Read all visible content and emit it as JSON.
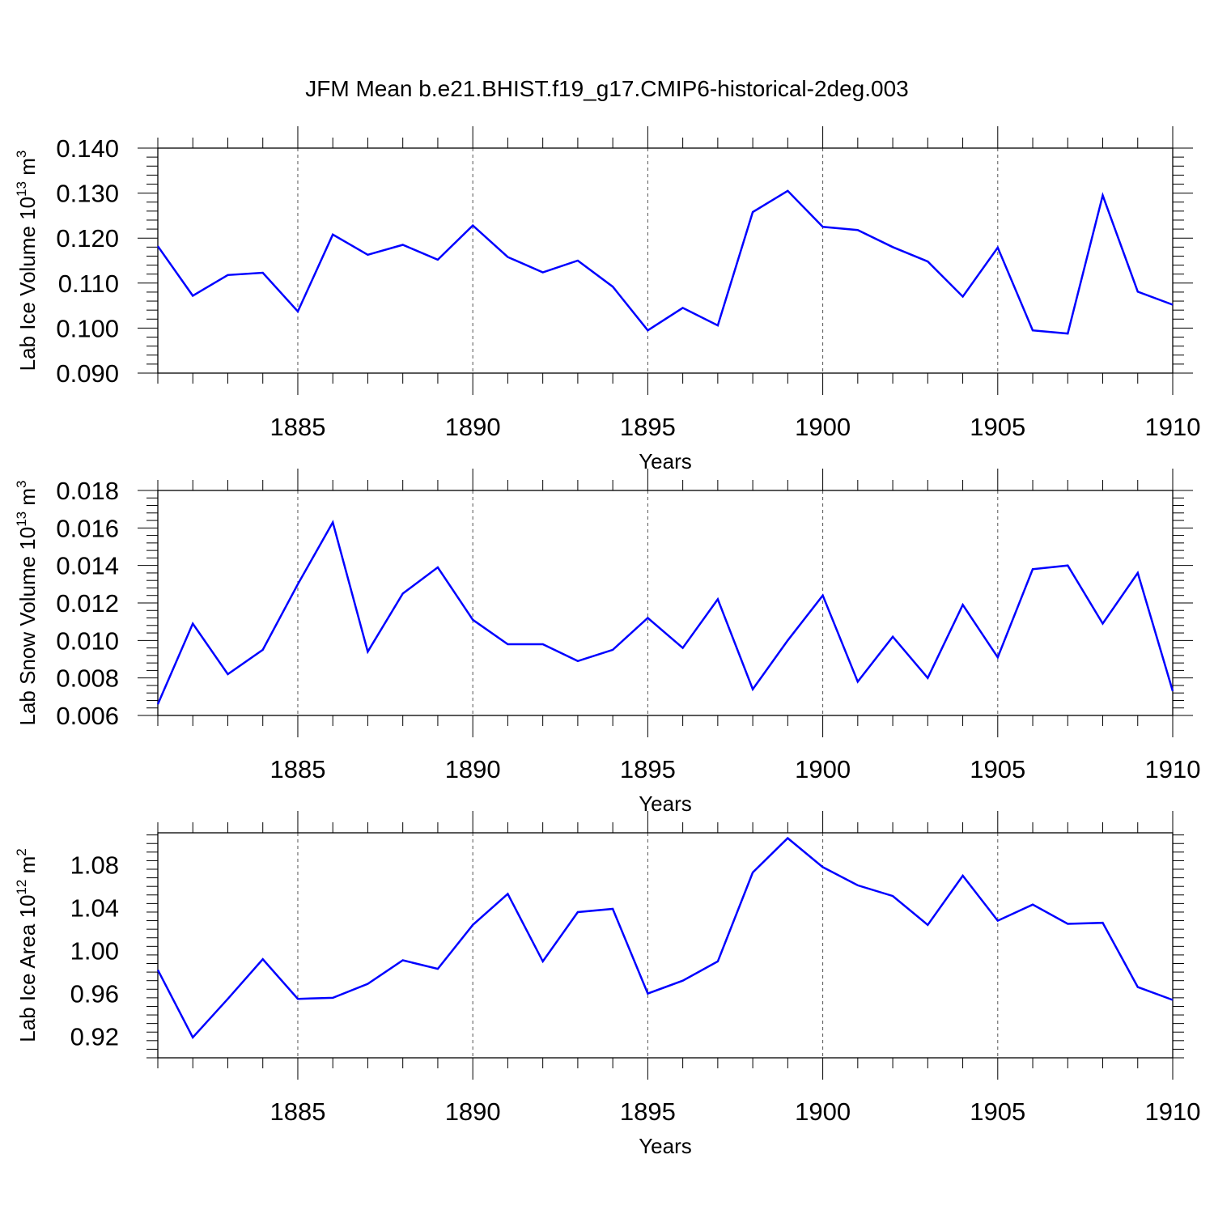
{
  "figure": {
    "title": "JFM Mean b.e21.BHIST.f19_g17.CMIP6-historical-2deg.003"
  },
  "chart_data": [
    {
      "type": "line",
      "title": "JFM Mean b.e21.BHIST.f19_g17.CMIP6-historical-2deg.003",
      "xlabel": "Years",
      "ylabel": {
        "text": "Lab Ice Volume 10",
        "sup1": "13",
        "unit": " m",
        "sup2": "3"
      },
      "xlim": [
        1881,
        1910
      ],
      "ylim": [
        0.09,
        0.14
      ],
      "x_ticks": [
        1885,
        1890,
        1895,
        1900,
        1905,
        1910
      ],
      "y_ticks": [
        "0.090",
        "0.100",
        "0.110",
        "0.120",
        "0.130",
        "0.140"
      ],
      "y_tick_values": [
        0.09,
        0.1,
        0.11,
        0.12,
        0.13,
        0.14
      ],
      "grid": "vertical-dashed",
      "color": "#0000ff",
      "x": [
        1881,
        1882,
        1883,
        1884,
        1885,
        1886,
        1887,
        1888,
        1889,
        1890,
        1891,
        1892,
        1893,
        1894,
        1895,
        1896,
        1897,
        1898,
        1899,
        1900,
        1901,
        1902,
        1903,
        1904,
        1905,
        1906,
        1907,
        1908,
        1909,
        1910
      ],
      "values": [
        0.1182,
        0.1072,
        0.1118,
        0.1123,
        0.1037,
        0.1208,
        0.1163,
        0.1185,
        0.1152,
        0.1228,
        0.1158,
        0.1124,
        0.115,
        0.1092,
        0.0995,
        0.1045,
        0.1006,
        0.1258,
        0.1305,
        0.1225,
        0.1218,
        0.118,
        0.1148,
        0.107,
        0.1179,
        0.0995,
        0.0988,
        0.1295,
        0.1081,
        0.1052
      ]
    },
    {
      "type": "line",
      "xlabel": "Years",
      "ylabel": {
        "text": "Lab Snow Volume 10",
        "sup1": "13",
        "unit": " m",
        "sup2": "3"
      },
      "xlim": [
        1881,
        1910
      ],
      "ylim": [
        0.006,
        0.018
      ],
      "x_ticks": [
        1885,
        1890,
        1895,
        1900,
        1905,
        1910
      ],
      "y_ticks": [
        "0.006",
        "0.008",
        "0.010",
        "0.012",
        "0.014",
        "0.016",
        "0.018"
      ],
      "y_tick_values": [
        0.006,
        0.008,
        0.01,
        0.012,
        0.014,
        0.016,
        0.018
      ],
      "grid": "vertical-dashed",
      "color": "#0000ff",
      "x": [
        1881,
        1882,
        1883,
        1884,
        1885,
        1886,
        1887,
        1888,
        1889,
        1890,
        1891,
        1892,
        1893,
        1894,
        1895,
        1896,
        1897,
        1898,
        1899,
        1900,
        1901,
        1902,
        1903,
        1904,
        1905,
        1906,
        1907,
        1908,
        1909,
        1910
      ],
      "values": [
        0.0066,
        0.0109,
        0.0082,
        0.0095,
        0.013,
        0.0163,
        0.0094,
        0.0125,
        0.0139,
        0.0111,
        0.0098,
        0.0098,
        0.0089,
        0.0095,
        0.0112,
        0.0096,
        0.0122,
        0.0074,
        0.01,
        0.0124,
        0.0078,
        0.0102,
        0.008,
        0.0119,
        0.0091,
        0.0138,
        0.014,
        0.0109,
        0.0136,
        0.0073
      ]
    },
    {
      "type": "line",
      "xlabel": "Years",
      "ylabel": {
        "text": "Lab Ice Area 10",
        "sup1": "12",
        "unit": " m",
        "sup2": "2"
      },
      "xlim": [
        1881,
        1910
      ],
      "ylim": [
        0.9,
        1.11
      ],
      "x_ticks": [
        1885,
        1890,
        1895,
        1900,
        1905,
        1910
      ],
      "y_ticks": [
        "0.92",
        "0.96",
        "1.00",
        "1.04",
        "1.08"
      ],
      "y_tick_values": [
        0.92,
        0.96,
        1.0,
        1.04,
        1.08
      ],
      "grid": "vertical-dashed",
      "color": "#0000ff",
      "x": [
        1881,
        1882,
        1883,
        1884,
        1885,
        1886,
        1887,
        1888,
        1889,
        1890,
        1891,
        1892,
        1893,
        1894,
        1895,
        1896,
        1897,
        1898,
        1899,
        1900,
        1901,
        1902,
        1903,
        1904,
        1905,
        1906,
        1907,
        1908,
        1909,
        1910
      ],
      "values": [
        0.982,
        0.919,
        0.955,
        0.992,
        0.955,
        0.956,
        0.969,
        0.991,
        0.983,
        1.024,
        1.053,
        0.99,
        1.036,
        1.039,
        0.96,
        0.972,
        0.99,
        1.073,
        1.105,
        1.078,
        1.061,
        1.051,
        1.024,
        1.07,
        1.028,
        1.043,
        1.025,
        1.026,
        0.966,
        0.954
      ]
    }
  ]
}
